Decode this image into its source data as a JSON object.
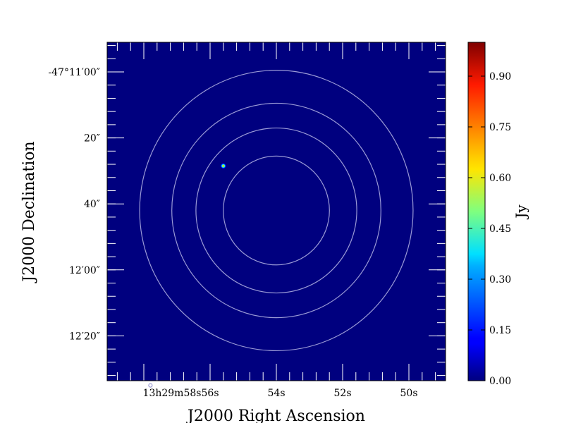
{
  "chart_data": {
    "type": "image",
    "xlabel": "J2000 Right Ascension",
    "ylabel": "J2000 Declination",
    "colorbar_label": "Jy",
    "colormap": "jet",
    "background_color": "#00007f",
    "ra_ticks": [
      {
        "label": "13h29m58s",
        "sec": 58
      },
      {
        "label": "56s",
        "sec": 56
      },
      {
        "label": "54s",
        "sec": 54
      },
      {
        "label": "52s",
        "sec": 52
      },
      {
        "label": "50s",
        "sec": 50
      }
    ],
    "dec_ticks": [
      {
        "label": "-47°11′00″",
        "arcsec": 0
      },
      {
        "label": "20″",
        "arcsec": 20
      },
      {
        "label": "40″",
        "arcsec": 40
      },
      {
        "label": "12′00″",
        "arcsec": 60
      },
      {
        "label": "12′20″",
        "arcsec": 80
      }
    ],
    "colorbar_ticks": [
      "0.00",
      "0.15",
      "0.30",
      "0.45",
      "0.60",
      "0.75",
      "0.90"
    ],
    "colorbar_values": [
      0.0,
      0.15,
      0.3,
      0.45,
      0.6,
      0.75,
      0.9
    ],
    "colorbar_range": [
      0.0,
      1.0
    ],
    "rings_arcsec": [
      16.5,
      25,
      32.5,
      42.5
    ],
    "center": {
      "ra_sec": 54.0,
      "dec_arcsec": 42
    },
    "source": {
      "ra_sec": 55.6,
      "dec_arcsec": 28.5,
      "peak_jy": 1.0
    },
    "beam": {
      "ra_sec": 57.8,
      "dec_arcsec": 95
    }
  }
}
